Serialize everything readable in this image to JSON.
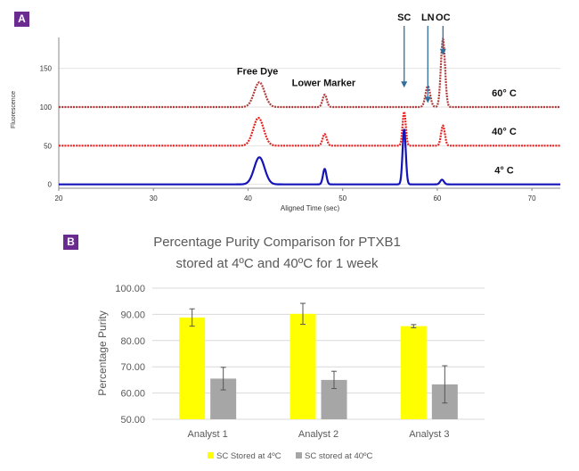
{
  "chart_data": [
    {
      "panel": "A",
      "type": "line",
      "xlabel": "Aligned Time (sec)",
      "ylabel": "Fluorescence",
      "xlim": [
        20,
        73
      ],
      "ylim": [
        -5,
        190
      ],
      "x_ticks": [
        20,
        30,
        40,
        50,
        60,
        70
      ],
      "y_ticks": [
        0,
        50,
        100,
        150
      ],
      "grid": "horizontal",
      "series": [
        {
          "name": "60° C",
          "color": "#b03a3a",
          "baseline": 100,
          "peaks": [
            {
              "x": 41.2,
              "height": 32,
              "width": 0.55
            },
            {
              "x": 48.1,
              "height": 16,
              "width": 0.22
            },
            {
              "x": 59.0,
              "height": 27,
              "width": 0.25
            },
            {
              "x": 60.6,
              "height": 88,
              "width": 0.22
            }
          ]
        },
        {
          "name": "40° C",
          "color": "#e8211f",
          "baseline": 50,
          "peaks": [
            {
              "x": 41.1,
              "height": 36,
              "width": 0.55
            },
            {
              "x": 48.1,
              "height": 15,
              "width": 0.22
            },
            {
              "x": 56.5,
              "height": 44,
              "width": 0.17
            },
            {
              "x": 60.6,
              "height": 26,
              "width": 0.2
            }
          ]
        },
        {
          "name": "4° C",
          "color": "#1414b8",
          "baseline": 0,
          "peaks": [
            {
              "x": 41.2,
              "height": 35,
              "width": 0.55
            },
            {
              "x": 48.1,
              "height": 20,
              "width": 0.18
            },
            {
              "x": 56.5,
              "height": 71,
              "width": 0.17
            },
            {
              "x": 60.5,
              "height": 6,
              "width": 0.2
            }
          ]
        }
      ],
      "annotations": [
        {
          "text": "Free Dye",
          "x": 41.0,
          "y": 142
        },
        {
          "text": "Lower Marker",
          "x": 48.0,
          "y": 127
        }
      ],
      "arrows": [
        {
          "text": "SC",
          "x": 56.5
        },
        {
          "text": "LN",
          "x": 59.0
        },
        {
          "text": "OC",
          "x": 60.6
        }
      ],
      "series_labels": [
        {
          "text": "60° C",
          "y": 114
        },
        {
          "text": "40° C",
          "y": 64
        },
        {
          "text": "4° C",
          "y": 14
        }
      ]
    },
    {
      "panel": "B",
      "type": "bar",
      "title": "Percentage Purity Comparison for PTXB1 stored at 4ºC and 40ºC for 1 week",
      "title_lines": [
        "Percentage Purity Comparison for PTXB1",
        "stored at 4ºC and 40ºC for 1 week"
      ],
      "ylabel": "Percentage Purity",
      "ylim": [
        50,
        100
      ],
      "y_ticks": [
        "50.00",
        "60.00",
        "70.00",
        "80.00",
        "90.00",
        "100.00"
      ],
      "categories": [
        "Analyst 1",
        "Analyst 2",
        "Analyst 3"
      ],
      "grid": "horizontal",
      "legend": "bottom",
      "series": [
        {
          "name": "SC Stored at 4ºC",
          "color": "#ffff00",
          "values": [
            88.8,
            90.2,
            85.5
          ],
          "errors": [
            3.3,
            4.0,
            0.6
          ]
        },
        {
          "name": "SC stored at 40ºC",
          "color": "#a6a6a6",
          "values": [
            65.5,
            65.0,
            63.3
          ],
          "errors": [
            4.3,
            3.3,
            7.1
          ]
        }
      ]
    }
  ],
  "panel_labels": [
    "A",
    "B"
  ]
}
